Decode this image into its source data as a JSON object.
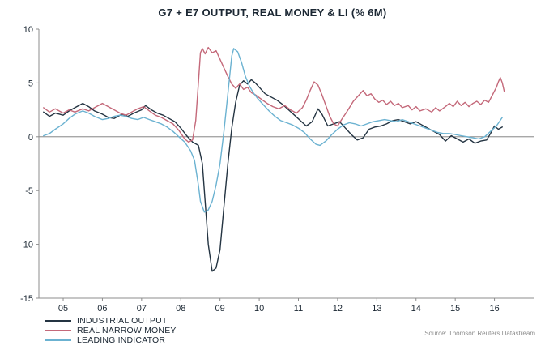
{
  "colors": {
    "axis": "#8c8c8c",
    "zero_line": "#737373",
    "text": "#1b2733",
    "source_text": "#8c8c8c"
  },
  "source": "Source: Thomson Reuters Datastream",
  "chart_data": {
    "type": "line",
    "title": "G7 + E7 OUTPUT, REAL MONEY & LI (% 6M)",
    "xlabel": "",
    "ylabel": "",
    "xlim": [
      2004.38,
      2017.0
    ],
    "ylim": [
      -15,
      10
    ],
    "y_ticks": [
      10,
      5,
      0,
      -5,
      -10,
      -15
    ],
    "x_tick_years": [
      2005,
      2006,
      2007,
      2008,
      2009,
      2010,
      2011,
      2012,
      2013,
      2014,
      2015,
      2016
    ],
    "x_tick_labels": [
      "05",
      "06",
      "07",
      "08",
      "09",
      "10",
      "11",
      "12",
      "13",
      "14",
      "15",
      "16"
    ],
    "grid": false,
    "zero_line": true,
    "legend_position": "bottom-left",
    "series": [
      {
        "name": "INDUSTRIAL OUTPUT",
        "color": "#243442",
        "points": [
          [
            2004.5,
            2.3
          ],
          [
            2004.65,
            1.9
          ],
          [
            2004.8,
            2.2
          ],
          [
            2005.0,
            2.0
          ],
          [
            2005.15,
            2.4
          ],
          [
            2005.3,
            2.7
          ],
          [
            2005.5,
            3.1
          ],
          [
            2005.65,
            2.8
          ],
          [
            2005.8,
            2.4
          ],
          [
            2006.0,
            2.1
          ],
          [
            2006.15,
            1.8
          ],
          [
            2006.3,
            1.7
          ],
          [
            2006.5,
            2.1
          ],
          [
            2006.65,
            1.9
          ],
          [
            2006.8,
            2.2
          ],
          [
            2007.0,
            2.5
          ],
          [
            2007.1,
            2.9
          ],
          [
            2007.25,
            2.5
          ],
          [
            2007.4,
            2.2
          ],
          [
            2007.55,
            2.0
          ],
          [
            2007.7,
            1.7
          ],
          [
            2007.85,
            1.4
          ],
          [
            2008.0,
            0.8
          ],
          [
            2008.15,
            0.1
          ],
          [
            2008.3,
            -0.5
          ],
          [
            2008.45,
            -0.8
          ],
          [
            2008.55,
            -2.5
          ],
          [
            2008.62,
            -6.0
          ],
          [
            2008.7,
            -10.0
          ],
          [
            2008.8,
            -12.5
          ],
          [
            2008.9,
            -12.2
          ],
          [
            2009.0,
            -10.5
          ],
          [
            2009.1,
            -6.5
          ],
          [
            2009.2,
            -2.5
          ],
          [
            2009.3,
            0.8
          ],
          [
            2009.4,
            3.2
          ],
          [
            2009.5,
            4.8
          ],
          [
            2009.6,
            5.2
          ],
          [
            2009.7,
            4.9
          ],
          [
            2009.8,
            5.3
          ],
          [
            2009.9,
            5.0
          ],
          [
            2010.0,
            4.6
          ],
          [
            2010.15,
            4.0
          ],
          [
            2010.3,
            3.7
          ],
          [
            2010.45,
            3.4
          ],
          [
            2010.6,
            3.0
          ],
          [
            2010.75,
            2.5
          ],
          [
            2010.9,
            2.0
          ],
          [
            2011.05,
            1.5
          ],
          [
            2011.2,
            1.0
          ],
          [
            2011.35,
            1.4
          ],
          [
            2011.5,
            2.6
          ],
          [
            2011.6,
            2.1
          ],
          [
            2011.75,
            1.0
          ],
          [
            2011.9,
            1.2
          ],
          [
            2012.05,
            1.4
          ],
          [
            2012.2,
            0.8
          ],
          [
            2012.35,
            0.2
          ],
          [
            2012.5,
            -0.3
          ],
          [
            2012.65,
            -0.1
          ],
          [
            2012.8,
            0.7
          ],
          [
            2012.95,
            0.9
          ],
          [
            2013.1,
            1.0
          ],
          [
            2013.25,
            1.2
          ],
          [
            2013.4,
            1.5
          ],
          [
            2013.55,
            1.6
          ],
          [
            2013.7,
            1.4
          ],
          [
            2013.85,
            1.2
          ],
          [
            2014.0,
            1.4
          ],
          [
            2014.15,
            1.1
          ],
          [
            2014.3,
            0.8
          ],
          [
            2014.45,
            0.5
          ],
          [
            2014.6,
            0.2
          ],
          [
            2014.75,
            -0.4
          ],
          [
            2014.9,
            0.1
          ],
          [
            2015.05,
            -0.2
          ],
          [
            2015.2,
            -0.5
          ],
          [
            2015.35,
            -0.2
          ],
          [
            2015.5,
            -0.6
          ],
          [
            2015.65,
            -0.4
          ],
          [
            2015.8,
            -0.3
          ],
          [
            2015.9,
            0.3
          ],
          [
            2016.0,
            1.0
          ],
          [
            2016.1,
            0.7
          ],
          [
            2016.2,
            0.9
          ]
        ]
      },
      {
        "name": "REAL NARROW MONEY",
        "color": "#c4697a",
        "points": [
          [
            2004.5,
            2.7
          ],
          [
            2004.65,
            2.3
          ],
          [
            2004.8,
            2.6
          ],
          [
            2005.0,
            2.2
          ],
          [
            2005.15,
            2.5
          ],
          [
            2005.3,
            2.3
          ],
          [
            2005.5,
            2.6
          ],
          [
            2005.65,
            2.4
          ],
          [
            2005.8,
            2.7
          ],
          [
            2006.0,
            3.1
          ],
          [
            2006.15,
            2.8
          ],
          [
            2006.3,
            2.5
          ],
          [
            2006.45,
            2.2
          ],
          [
            2006.6,
            2.0
          ],
          [
            2006.75,
            2.3
          ],
          [
            2006.9,
            2.6
          ],
          [
            2007.05,
            2.8
          ],
          [
            2007.2,
            2.4
          ],
          [
            2007.35,
            2.0
          ],
          [
            2007.5,
            1.8
          ],
          [
            2007.65,
            1.5
          ],
          [
            2007.8,
            1.2
          ],
          [
            2007.95,
            0.6
          ],
          [
            2008.1,
            -0.2
          ],
          [
            2008.2,
            -0.5
          ],
          [
            2008.3,
            -0.3
          ],
          [
            2008.38,
            1.5
          ],
          [
            2008.45,
            5.0
          ],
          [
            2008.5,
            7.8
          ],
          [
            2008.55,
            8.2
          ],
          [
            2008.62,
            7.7
          ],
          [
            2008.7,
            8.3
          ],
          [
            2008.8,
            7.8
          ],
          [
            2008.9,
            8.0
          ],
          [
            2009.0,
            7.2
          ],
          [
            2009.1,
            6.4
          ],
          [
            2009.2,
            5.6
          ],
          [
            2009.3,
            4.9
          ],
          [
            2009.4,
            4.5
          ],
          [
            2009.5,
            4.9
          ],
          [
            2009.6,
            4.4
          ],
          [
            2009.7,
            4.6
          ],
          [
            2009.8,
            4.1
          ],
          [
            2009.9,
            3.9
          ],
          [
            2010.05,
            3.5
          ],
          [
            2010.2,
            3.1
          ],
          [
            2010.35,
            2.8
          ],
          [
            2010.5,
            2.6
          ],
          [
            2010.65,
            2.9
          ],
          [
            2010.8,
            2.5
          ],
          [
            2010.95,
            2.2
          ],
          [
            2011.1,
            2.7
          ],
          [
            2011.2,
            3.4
          ],
          [
            2011.3,
            4.3
          ],
          [
            2011.4,
            5.1
          ],
          [
            2011.5,
            4.8
          ],
          [
            2011.6,
            3.9
          ],
          [
            2011.7,
            2.9
          ],
          [
            2011.8,
            1.9
          ],
          [
            2011.9,
            1.2
          ],
          [
            2012.0,
            1.0
          ],
          [
            2012.1,
            1.6
          ],
          [
            2012.25,
            2.4
          ],
          [
            2012.4,
            3.3
          ],
          [
            2012.55,
            3.9
          ],
          [
            2012.65,
            4.3
          ],
          [
            2012.75,
            3.8
          ],
          [
            2012.85,
            4.0
          ],
          [
            2012.95,
            3.5
          ],
          [
            2013.05,
            3.2
          ],
          [
            2013.15,
            3.4
          ],
          [
            2013.25,
            3.0
          ],
          [
            2013.35,
            3.3
          ],
          [
            2013.45,
            2.9
          ],
          [
            2013.55,
            3.1
          ],
          [
            2013.65,
            2.7
          ],
          [
            2013.8,
            2.9
          ],
          [
            2013.9,
            2.5
          ],
          [
            2014.0,
            2.8
          ],
          [
            2014.1,
            2.4
          ],
          [
            2014.25,
            2.6
          ],
          [
            2014.4,
            2.3
          ],
          [
            2014.5,
            2.7
          ],
          [
            2014.6,
            2.4
          ],
          [
            2014.75,
            2.8
          ],
          [
            2014.85,
            3.1
          ],
          [
            2014.95,
            2.8
          ],
          [
            2015.05,
            3.3
          ],
          [
            2015.15,
            2.9
          ],
          [
            2015.25,
            3.2
          ],
          [
            2015.35,
            2.8
          ],
          [
            2015.45,
            3.1
          ],
          [
            2015.55,
            3.3
          ],
          [
            2015.65,
            3.0
          ],
          [
            2015.75,
            3.4
          ],
          [
            2015.85,
            3.2
          ],
          [
            2015.95,
            3.9
          ],
          [
            2016.05,
            4.6
          ],
          [
            2016.1,
            5.1
          ],
          [
            2016.15,
            5.5
          ],
          [
            2016.2,
            5.0
          ],
          [
            2016.25,
            4.2
          ]
        ]
      },
      {
        "name": "LEADING INDICATOR",
        "color": "#6bb2d1",
        "points": [
          [
            2004.5,
            0.1
          ],
          [
            2004.65,
            0.3
          ],
          [
            2004.8,
            0.7
          ],
          [
            2005.0,
            1.2
          ],
          [
            2005.15,
            1.7
          ],
          [
            2005.3,
            2.1
          ],
          [
            2005.5,
            2.4
          ],
          [
            2005.65,
            2.2
          ],
          [
            2005.8,
            1.9
          ],
          [
            2006.0,
            1.6
          ],
          [
            2006.15,
            1.7
          ],
          [
            2006.3,
            1.9
          ],
          [
            2006.45,
            2.0
          ],
          [
            2006.6,
            1.9
          ],
          [
            2006.75,
            1.7
          ],
          [
            2006.9,
            1.6
          ],
          [
            2007.05,
            1.8
          ],
          [
            2007.2,
            1.6
          ],
          [
            2007.35,
            1.4
          ],
          [
            2007.5,
            1.2
          ],
          [
            2007.65,
            0.9
          ],
          [
            2007.8,
            0.5
          ],
          [
            2007.95,
            0.0
          ],
          [
            2008.1,
            -0.5
          ],
          [
            2008.25,
            -1.3
          ],
          [
            2008.35,
            -2.2
          ],
          [
            2008.45,
            -4.5
          ],
          [
            2008.5,
            -6.0
          ],
          [
            2008.6,
            -7.0
          ],
          [
            2008.7,
            -6.8
          ],
          [
            2008.8,
            -6.0
          ],
          [
            2008.9,
            -4.5
          ],
          [
            2009.0,
            -2.5
          ],
          [
            2009.1,
            0.5
          ],
          [
            2009.2,
            4.0
          ],
          [
            2009.3,
            7.5
          ],
          [
            2009.35,
            8.2
          ],
          [
            2009.45,
            7.9
          ],
          [
            2009.55,
            6.9
          ],
          [
            2009.65,
            5.6
          ],
          [
            2009.75,
            4.7
          ],
          [
            2009.85,
            4.1
          ],
          [
            2009.95,
            3.6
          ],
          [
            2010.1,
            3.0
          ],
          [
            2010.25,
            2.4
          ],
          [
            2010.4,
            1.9
          ],
          [
            2010.55,
            1.5
          ],
          [
            2010.7,
            1.3
          ],
          [
            2010.85,
            1.1
          ],
          [
            2011.0,
            0.8
          ],
          [
            2011.15,
            0.4
          ],
          [
            2011.3,
            -0.2
          ],
          [
            2011.45,
            -0.7
          ],
          [
            2011.55,
            -0.8
          ],
          [
            2011.7,
            -0.4
          ],
          [
            2011.85,
            0.2
          ],
          [
            2012.0,
            0.7
          ],
          [
            2012.15,
            1.1
          ],
          [
            2012.3,
            1.3
          ],
          [
            2012.45,
            1.2
          ],
          [
            2012.6,
            1.0
          ],
          [
            2012.75,
            1.2
          ],
          [
            2012.9,
            1.4
          ],
          [
            2013.05,
            1.5
          ],
          [
            2013.2,
            1.6
          ],
          [
            2013.35,
            1.5
          ],
          [
            2013.5,
            1.4
          ],
          [
            2013.65,
            1.6
          ],
          [
            2013.8,
            1.4
          ],
          [
            2013.95,
            1.2
          ],
          [
            2014.1,
            1.0
          ],
          [
            2014.25,
            0.8
          ],
          [
            2014.4,
            0.6
          ],
          [
            2014.55,
            0.4
          ],
          [
            2014.7,
            0.3
          ],
          [
            2014.85,
            0.3
          ],
          [
            2015.0,
            0.2
          ],
          [
            2015.15,
            0.1
          ],
          [
            2015.3,
            0.0
          ],
          [
            2015.45,
            -0.1
          ],
          [
            2015.6,
            -0.2
          ],
          [
            2015.75,
            0.0
          ],
          [
            2015.9,
            0.5
          ],
          [
            2016.05,
            1.0
          ],
          [
            2016.2,
            1.8
          ]
        ]
      }
    ]
  }
}
